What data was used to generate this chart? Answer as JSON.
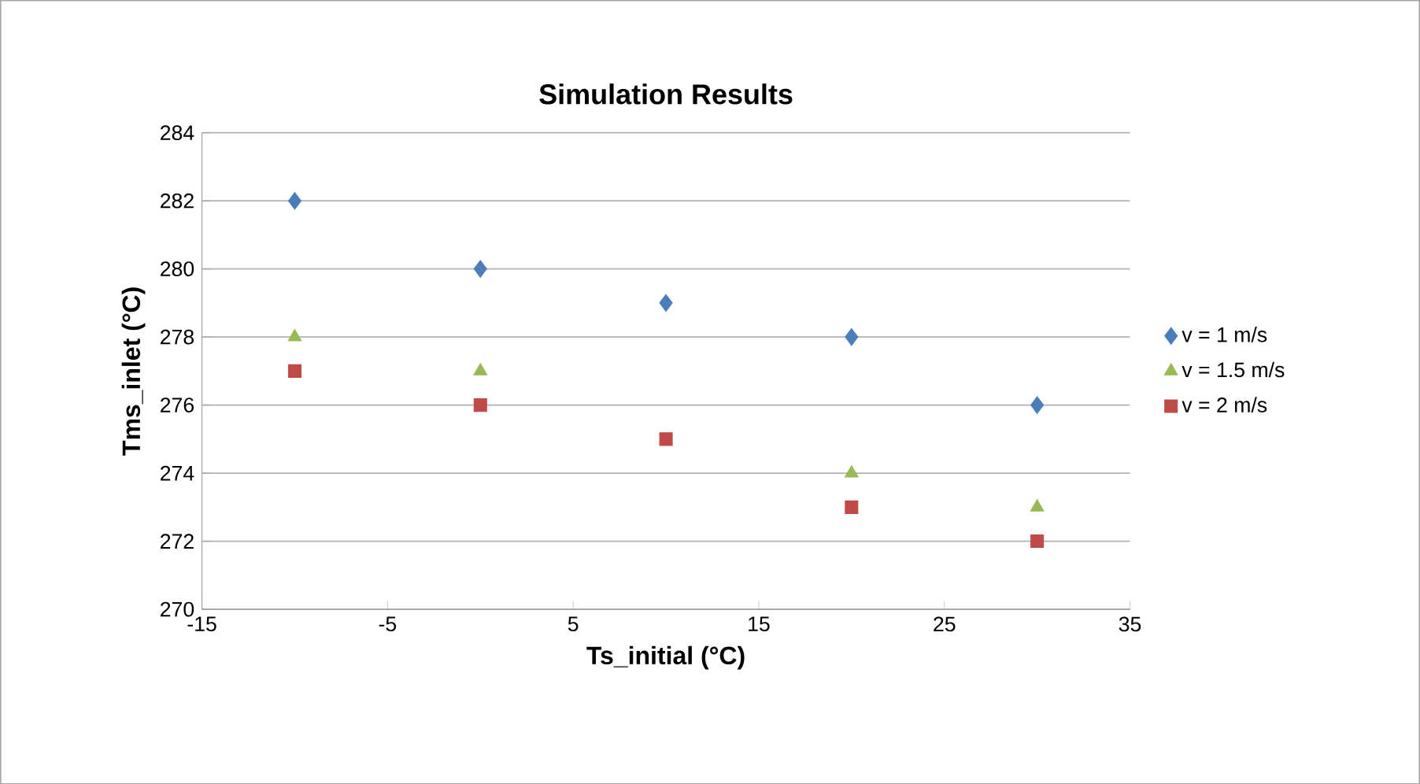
{
  "chart_data": {
    "type": "scatter",
    "title": "Simulation Results",
    "xlabel": "Ts_initial (°C)",
    "ylabel": "Tms_inlet (°C)",
    "x": [
      -10,
      0,
      10,
      20,
      30
    ],
    "series": [
      {
        "name": "v = 1 m/s",
        "color": "#4a7ebb",
        "marker": "diamond",
        "values": [
          282,
          280,
          279,
          278,
          276
        ]
      },
      {
        "name": "v = 1.5 m/s",
        "color": "#98b954",
        "marker": "triangle",
        "values": [
          278,
          277,
          null,
          274,
          273
        ]
      },
      {
        "name": "v = 2 m/s",
        "color": "#be4b48",
        "marker": "square",
        "values": [
          277,
          276,
          275,
          273,
          272
        ]
      }
    ],
    "xlim": [
      -15,
      35
    ],
    "xticks": [
      -15,
      -5,
      5,
      15,
      25,
      35
    ],
    "ylim": [
      270,
      284
    ],
    "yticks": [
      270,
      272,
      274,
      276,
      278,
      280,
      282,
      284
    ],
    "grid": "y",
    "legend": "right"
  }
}
